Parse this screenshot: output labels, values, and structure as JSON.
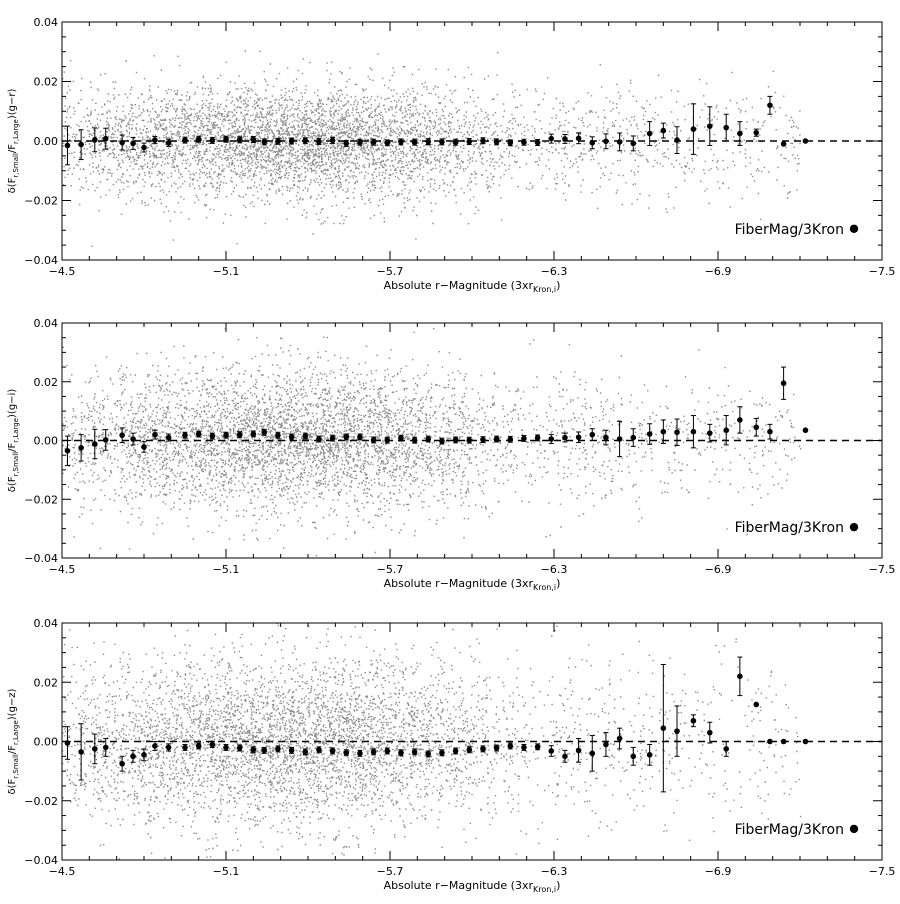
{
  "chart_data": [
    {
      "type": "scatter",
      "xlabel_main": "Absolute r−Magnitude (3xr",
      "xlabel_sub": "Kron,i",
      "xlabel_end": ")",
      "ylabel_pre": "δ(F",
      "ylabel_sub1": "r,Small",
      "ylabel_mid": "/F",
      "ylabel_sub2": "r,Large",
      "ylabel_post": ")(g−r)",
      "legend": "FiberMag/3Kron",
      "xlim": [
        -4.5,
        -7.5
      ],
      "ylim": [
        -0.04,
        0.04
      ],
      "xticks": [
        "-4.5",
        "-5.1",
        "-5.7",
        "-6.3",
        "-6.9",
        "-7.5"
      ],
      "yticks": [
        "-0.04",
        "-0.02",
        "0.00",
        "0.02",
        "0.04"
      ],
      "scatter_sigma": 0.0085,
      "binned": {
        "x": [
          -4.52,
          -4.57,
          -4.62,
          -4.66,
          -4.72,
          -4.76,
          -4.8,
          -4.84,
          -4.89,
          -4.95,
          -5.0,
          -5.05,
          -5.1,
          -5.15,
          -5.2,
          -5.24,
          -5.29,
          -5.34,
          -5.39,
          -5.44,
          -5.49,
          -5.54,
          -5.59,
          -5.64,
          -5.69,
          -5.74,
          -5.79,
          -5.84,
          -5.89,
          -5.94,
          -5.99,
          -6.04,
          -6.09,
          -6.14,
          -6.19,
          -6.24,
          -6.29,
          -6.34,
          -6.39,
          -6.44,
          -6.49,
          -6.54,
          -6.59,
          -6.65,
          -6.7,
          -6.75,
          -6.81,
          -6.87,
          -6.93,
          -6.98,
          -7.04,
          -7.09,
          -7.14,
          -7.22
        ],
        "y": [
          -0.0015,
          -0.0012,
          0.0004,
          0.0008,
          -0.0005,
          -0.0008,
          -0.0022,
          0.0003,
          -0.0006,
          0.0003,
          0.0006,
          0.0002,
          0.0006,
          0.0004,
          0.0005,
          -0.0003,
          -0.0001,
          0.0,
          0.0001,
          -0.0002,
          0.0002,
          -0.0008,
          -0.0004,
          -0.0004,
          -0.0006,
          -0.0003,
          -0.0004,
          -0.0002,
          -0.0003,
          -0.0004,
          -0.0002,
          0.0001,
          -0.0003,
          -0.0006,
          -0.0004,
          -0.0005,
          0.0008,
          0.0007,
          0.0009,
          -0.0006,
          -0.0001,
          -0.0003,
          -0.0008,
          0.0025,
          0.0035,
          0.0003,
          0.004,
          0.005,
          0.0045,
          0.0025,
          0.0028,
          0.012,
          -0.001,
          0.0
        ],
        "err": [
          0.0065,
          0.005,
          0.004,
          0.0035,
          0.0025,
          0.002,
          0.0015,
          0.0012,
          0.0012,
          0.001,
          0.001,
          0.001,
          0.001,
          0.001,
          0.001,
          0.001,
          0.001,
          0.001,
          0.001,
          0.001,
          0.001,
          0.001,
          0.001,
          0.001,
          0.001,
          0.001,
          0.001,
          0.001,
          0.001,
          0.001,
          0.001,
          0.001,
          0.001,
          0.001,
          0.001,
          0.001,
          0.0015,
          0.0015,
          0.0018,
          0.002,
          0.0025,
          0.003,
          0.0025,
          0.004,
          0.0025,
          0.0045,
          0.0085,
          0.0065,
          0.0045,
          0.004,
          0.0012,
          0.003,
          0.0,
          0.0
        ]
      }
    },
    {
      "type": "scatter",
      "xlabel_main": "Absolute r−Magnitude (3xr",
      "xlabel_sub": "Kron,i",
      "xlabel_end": ")",
      "ylabel_pre": "δ(F",
      "ylabel_sub1": "r,Small",
      "ylabel_mid": "/F",
      "ylabel_sub2": "r,Large",
      "ylabel_post": ")(g−i)",
      "legend": "FiberMag/3Kron",
      "xlim": [
        -4.5,
        -7.5
      ],
      "ylim": [
        -0.04,
        0.04
      ],
      "xticks": [
        "-4.5",
        "-5.1",
        "-5.7",
        "-6.3",
        "-6.9",
        "-7.5"
      ],
      "yticks": [
        "-0.04",
        "-0.02",
        "0.00",
        "0.02",
        "0.04"
      ],
      "scatter_sigma": 0.0105,
      "binned": {
        "x": [
          -4.52,
          -4.57,
          -4.62,
          -4.66,
          -4.72,
          -4.76,
          -4.8,
          -4.84,
          -4.89,
          -4.95,
          -5.0,
          -5.05,
          -5.1,
          -5.15,
          -5.2,
          -5.24,
          -5.29,
          -5.34,
          -5.39,
          -5.44,
          -5.49,
          -5.54,
          -5.59,
          -5.64,
          -5.69,
          -5.74,
          -5.79,
          -5.84,
          -5.89,
          -5.94,
          -5.99,
          -6.04,
          -6.09,
          -6.14,
          -6.19,
          -6.24,
          -6.29,
          -6.34,
          -6.39,
          -6.44,
          -6.49,
          -6.54,
          -6.59,
          -6.65,
          -6.7,
          -6.75,
          -6.81,
          -6.87,
          -6.93,
          -6.98,
          -7.04,
          -7.09,
          -7.14,
          -7.22
        ],
        "y": [
          -0.0035,
          -0.0025,
          -0.0012,
          0.0002,
          0.0018,
          0.0005,
          -0.0022,
          0.002,
          0.001,
          0.0018,
          0.0022,
          0.0015,
          0.0018,
          0.002,
          0.0022,
          0.0028,
          0.0018,
          0.0012,
          0.0015,
          0.0005,
          0.0008,
          0.0012,
          0.0012,
          0.0002,
          0.0001,
          0.0008,
          0.0001,
          0.0005,
          -0.0002,
          0.0002,
          0.0001,
          0.0003,
          0.0005,
          0.0004,
          0.0007,
          0.0009,
          0.0005,
          0.001,
          0.0011,
          0.002,
          0.001,
          0.0005,
          0.001,
          0.0022,
          0.003,
          0.0028,
          0.003,
          0.0025,
          0.0035,
          0.007,
          0.0045,
          0.003,
          0.0195,
          0.0035
        ],
        "err": [
          0.005,
          0.0045,
          0.005,
          0.0035,
          0.0025,
          0.002,
          0.0018,
          0.0015,
          0.0012,
          0.001,
          0.001,
          0.001,
          0.001,
          0.001,
          0.001,
          0.001,
          0.001,
          0.001,
          0.001,
          0.001,
          0.001,
          0.001,
          0.001,
          0.001,
          0.001,
          0.001,
          0.001,
          0.001,
          0.001,
          0.001,
          0.001,
          0.001,
          0.001,
          0.001,
          0.001,
          0.001,
          0.0015,
          0.0015,
          0.0018,
          0.002,
          0.0025,
          0.006,
          0.003,
          0.0035,
          0.004,
          0.0045,
          0.0055,
          0.003,
          0.005,
          0.0045,
          0.003,
          0.0025,
          0.0055,
          0.0
        ]
      }
    },
    {
      "type": "scatter",
      "xlabel_main": "Absolute r−Magnitude (3xr",
      "xlabel_sub": "Kron,i",
      "xlabel_end": ")",
      "ylabel_pre": "δ(F",
      "ylabel_sub1": "r,Small",
      "ylabel_mid": "/F",
      "ylabel_sub2": "r,Large",
      "ylabel_post": ")(g−z)",
      "legend": "FiberMag/3Kron",
      "xlim": [
        -4.5,
        -7.5
      ],
      "ylim": [
        -0.04,
        0.04
      ],
      "xticks": [
        "-4.5",
        "-5.1",
        "-5.7",
        "-6.3",
        "-6.9",
        "-7.5"
      ],
      "yticks": [
        "-0.04",
        "-0.02",
        "0.00",
        "0.02",
        "0.04"
      ],
      "scatter_sigma": 0.0125,
      "binned": {
        "x": [
          -4.52,
          -4.57,
          -4.62,
          -4.66,
          -4.72,
          -4.76,
          -4.8,
          -4.84,
          -4.89,
          -4.95,
          -5.0,
          -5.05,
          -5.1,
          -5.15,
          -5.2,
          -5.24,
          -5.29,
          -5.34,
          -5.39,
          -5.44,
          -5.49,
          -5.54,
          -5.59,
          -5.64,
          -5.69,
          -5.74,
          -5.79,
          -5.84,
          -5.89,
          -5.94,
          -5.99,
          -6.04,
          -6.09,
          -6.14,
          -6.19,
          -6.24,
          -6.29,
          -6.34,
          -6.39,
          -6.44,
          -6.49,
          -6.54,
          -6.59,
          -6.65,
          -6.7,
          -6.75,
          -6.81,
          -6.87,
          -6.93,
          -6.98,
          -7.04,
          -7.09,
          -7.14,
          -7.22
        ],
        "y": [
          -0.0005,
          -0.0035,
          -0.0025,
          -0.002,
          -0.0075,
          -0.005,
          -0.0045,
          -0.0015,
          -0.002,
          -0.002,
          -0.0015,
          -0.001,
          -0.002,
          -0.0022,
          -0.0028,
          -0.003,
          -0.0025,
          -0.003,
          -0.0035,
          -0.0028,
          -0.0032,
          -0.0038,
          -0.004,
          -0.0035,
          -0.0032,
          -0.0038,
          -0.0035,
          -0.0042,
          -0.0038,
          -0.0032,
          -0.0028,
          -0.0025,
          -0.0022,
          -0.0015,
          -0.002,
          -0.0018,
          -0.0032,
          -0.005,
          -0.003,
          -0.004,
          -0.001,
          0.001,
          -0.005,
          -0.0045,
          0.0045,
          0.0035,
          0.007,
          0.003,
          -0.0025,
          0.022,
          0.0125,
          0.0,
          0.0,
          0.0
        ],
        "err": [
          0.0055,
          0.0095,
          0.005,
          0.003,
          0.0025,
          0.002,
          0.002,
          0.0015,
          0.0012,
          0.001,
          0.001,
          0.001,
          0.001,
          0.001,
          0.001,
          0.001,
          0.001,
          0.001,
          0.001,
          0.001,
          0.001,
          0.001,
          0.001,
          0.001,
          0.001,
          0.001,
          0.001,
          0.001,
          0.001,
          0.001,
          0.001,
          0.001,
          0.001,
          0.001,
          0.001,
          0.001,
          0.0018,
          0.002,
          0.004,
          0.006,
          0.004,
          0.0035,
          0.003,
          0.0035,
          0.0215,
          0.0085,
          0.002,
          0.0035,
          0.0025,
          0.0065,
          0.0,
          0.0,
          0.0,
          0.0
        ]
      }
    }
  ]
}
